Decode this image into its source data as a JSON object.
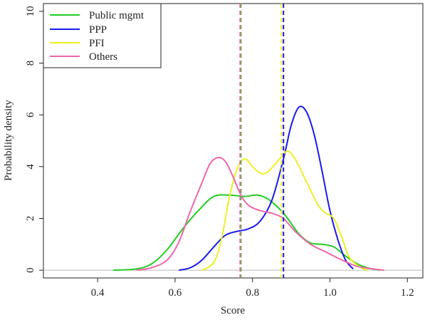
{
  "chart_data": {
    "type": "line",
    "xlabel": "Score",
    "ylabel": "Probability density",
    "xlim": [
      0.26,
      1.24
    ],
    "ylim": [
      -0.3,
      10.3
    ],
    "x_ticks": [
      "0.4",
      "0.6",
      "0.8",
      "1.0",
      "1.2"
    ],
    "y_ticks": [
      "0",
      "2",
      "4",
      "6",
      "8",
      "10"
    ],
    "legend_position": "top-left",
    "reference_line": {
      "y": 0,
      "color": "#bbbbbb"
    },
    "series": [
      {
        "name": "Public mgmt",
        "color": "#22cc22",
        "mean": 0.77,
        "points": [
          [
            0.44,
            0.0
          ],
          [
            0.5,
            0.05
          ],
          [
            0.54,
            0.25
          ],
          [
            0.58,
            0.8
          ],
          [
            0.62,
            1.6
          ],
          [
            0.66,
            2.3
          ],
          [
            0.7,
            2.85
          ],
          [
            0.74,
            2.9
          ],
          [
            0.78,
            2.85
          ],
          [
            0.81,
            2.9
          ],
          [
            0.84,
            2.75
          ],
          [
            0.88,
            2.2
          ],
          [
            0.92,
            1.4
          ],
          [
            0.95,
            1.05
          ],
          [
            0.98,
            1.0
          ],
          [
            1.01,
            0.9
          ],
          [
            1.04,
            0.55
          ],
          [
            1.07,
            0.25
          ],
          [
            1.1,
            0.08
          ],
          [
            1.13,
            0.0
          ]
        ]
      },
      {
        "name": "PPP",
        "color": "#1a1aee",
        "mean": 0.88,
        "points": [
          [
            0.61,
            0.0
          ],
          [
            0.64,
            0.1
          ],
          [
            0.67,
            0.4
          ],
          [
            0.7,
            0.9
          ],
          [
            0.73,
            1.35
          ],
          [
            0.76,
            1.5
          ],
          [
            0.79,
            1.6
          ],
          [
            0.82,
            1.9
          ],
          [
            0.85,
            2.7
          ],
          [
            0.88,
            4.3
          ],
          [
            0.9,
            5.6
          ],
          [
            0.92,
            6.3
          ],
          [
            0.94,
            6.1
          ],
          [
            0.96,
            5.2
          ],
          [
            0.98,
            3.8
          ],
          [
            1.0,
            2.3
          ],
          [
            1.02,
            1.2
          ],
          [
            1.04,
            0.4
          ],
          [
            1.06,
            0.05
          ]
        ]
      },
      {
        "name": "PFI",
        "color": "#eeee22",
        "mean": 0.875,
        "points": [
          [
            0.67,
            0.0
          ],
          [
            0.7,
            0.3
          ],
          [
            0.72,
            1.2
          ],
          [
            0.74,
            2.8
          ],
          [
            0.76,
            3.9
          ],
          [
            0.78,
            4.3
          ],
          [
            0.8,
            4.0
          ],
          [
            0.82,
            3.75
          ],
          [
            0.84,
            3.8
          ],
          [
            0.87,
            4.3
          ],
          [
            0.89,
            4.6
          ],
          [
            0.91,
            4.3
          ],
          [
            0.94,
            3.4
          ],
          [
            0.97,
            2.5
          ],
          [
            0.99,
            2.2
          ],
          [
            1.01,
            2.0
          ],
          [
            1.03,
            1.3
          ],
          [
            1.05,
            0.5
          ],
          [
            1.08,
            0.1
          ],
          [
            1.1,
            0.0
          ]
        ]
      },
      {
        "name": "Others",
        "color": "#ee66aa",
        "mean": 0.768,
        "points": [
          [
            0.5,
            0.0
          ],
          [
            0.54,
            0.1
          ],
          [
            0.58,
            0.4
          ],
          [
            0.61,
            1.1
          ],
          [
            0.64,
            2.3
          ],
          [
            0.67,
            3.4
          ],
          [
            0.69,
            4.1
          ],
          [
            0.71,
            4.35
          ],
          [
            0.73,
            4.2
          ],
          [
            0.75,
            3.6
          ],
          [
            0.77,
            2.9
          ],
          [
            0.79,
            2.5
          ],
          [
            0.82,
            2.3
          ],
          [
            0.85,
            2.2
          ],
          [
            0.88,
            2.0
          ],
          [
            0.91,
            1.5
          ],
          [
            0.95,
            1.0
          ],
          [
            0.99,
            0.7
          ],
          [
            1.03,
            0.4
          ],
          [
            1.07,
            0.15
          ],
          [
            1.11,
            0.05
          ],
          [
            1.14,
            0.0
          ]
        ]
      }
    ]
  }
}
